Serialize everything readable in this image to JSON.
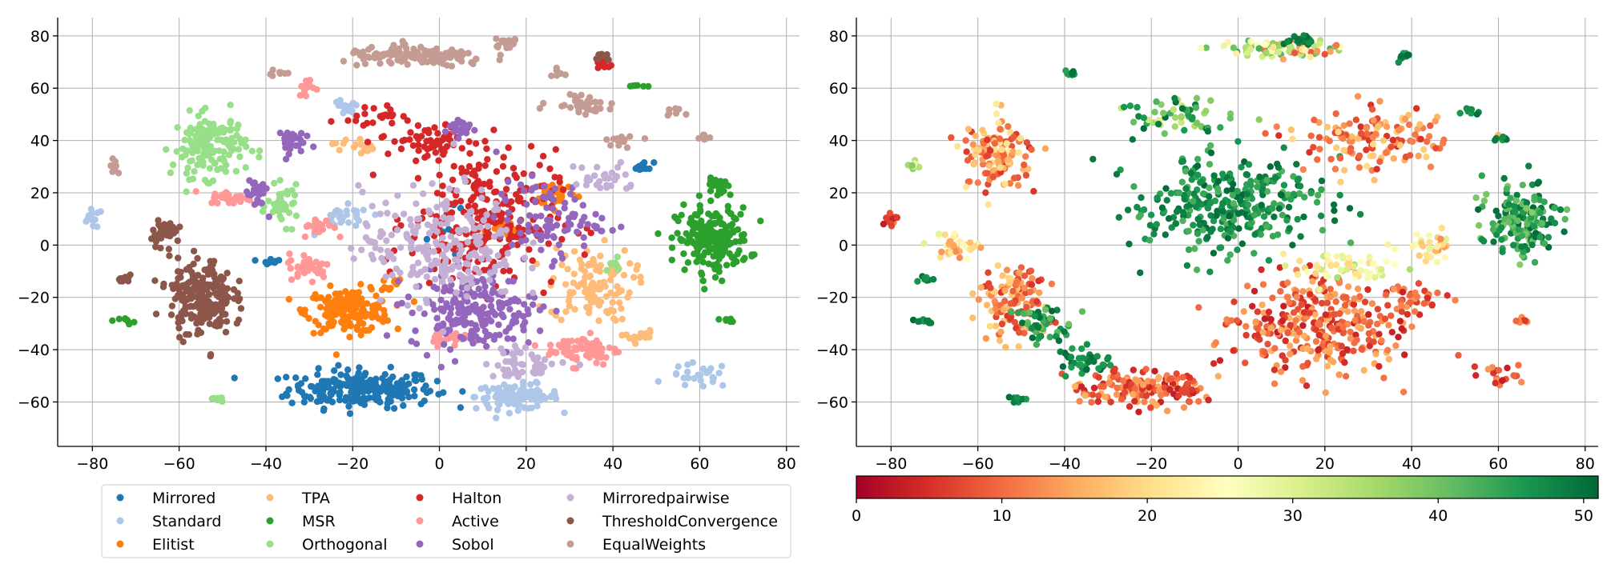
{
  "chart_data": [
    {
      "type": "scatter",
      "title": "",
      "xlabel": "",
      "ylabel": "",
      "xlim": [
        -88,
        83
      ],
      "ylim": [
        -77,
        87
      ],
      "xticks": [
        -80,
        -60,
        -40,
        -20,
        0,
        20,
        40,
        60,
        80
      ],
      "yticks": [
        -60,
        -40,
        -20,
        0,
        20,
        40,
        60,
        80
      ],
      "xtick_labels": [
        "−80",
        "−60",
        "−40",
        "−20",
        "0",
        "20",
        "40",
        "60",
        "80"
      ],
      "ytick_labels": [
        "−60",
        "−40",
        "−20",
        "0",
        "20",
        "40",
        "60",
        "80"
      ],
      "grid": true,
      "legend_position": "bottom-center",
      "legend_columns": 4,
      "series": [
        {
          "name": "Mirrored",
          "color": "#1f77b4",
          "clusters": [
            {
              "cx": -18,
              "cy": -55,
              "sx": 14,
              "sy": 6,
              "n": 230
            },
            {
              "cx": 47,
              "cy": 30,
              "sx": 2,
              "sy": 1.5,
              "n": 12
            },
            {
              "cx": -39,
              "cy": -6,
              "sx": 2,
              "sy": 1,
              "n": 8
            },
            {
              "cx": 6,
              "cy": 5,
              "sx": 10,
              "sy": 10,
              "n": 10
            }
          ]
        },
        {
          "name": "Standard",
          "color": "#aec7e8",
          "clusters": [
            {
              "cx": 18,
              "cy": -58,
              "sx": 8,
              "sy": 4,
              "n": 110
            },
            {
              "cx": -80,
              "cy": 10,
              "sx": 2,
              "sy": 3,
              "n": 15
            },
            {
              "cx": -22,
              "cy": 52,
              "sx": 3,
              "sy": 3,
              "n": 15
            },
            {
              "cx": 60,
              "cy": -50,
              "sx": 6,
              "sy": 4,
              "n": 25
            },
            {
              "cx": -22,
              "cy": 10,
              "sx": 5,
              "sy": 4,
              "n": 30
            }
          ]
        },
        {
          "name": "Elitist",
          "color": "#ff7f0e",
          "clusters": [
            {
              "cx": -21,
              "cy": -25,
              "sx": 8,
              "sy": 7,
              "n": 180
            },
            {
              "cx": 27,
              "cy": 20,
              "sx": 4,
              "sy": 4,
              "n": 35
            },
            {
              "cx": 15,
              "cy": 5,
              "sx": 4,
              "sy": 3,
              "n": 20
            },
            {
              "cx": -12,
              "cy": -15,
              "sx": 3,
              "sy": 3,
              "n": 10
            }
          ]
        },
        {
          "name": "TPA",
          "color": "#ffbb78",
          "clusters": [
            {
              "cx": 35,
              "cy": -15,
              "sx": 8,
              "sy": 12,
              "n": 110
            },
            {
              "cx": -20,
              "cy": 38,
              "sx": 4,
              "sy": 3,
              "n": 15
            },
            {
              "cx": 46,
              "cy": -35,
              "sx": 3,
              "sy": 2,
              "n": 15
            }
          ]
        },
        {
          "name": "MSR",
          "color": "#2ca02c",
          "clusters": [
            {
              "cx": 63,
              "cy": 2,
              "sx": 7,
              "sy": 10,
              "n": 210
            },
            {
              "cx": 65,
              "cy": 22,
              "sx": 3,
              "sy": 3,
              "n": 25
            },
            {
              "cx": -72,
              "cy": -29,
              "sx": 1.5,
              "sy": 1,
              "n": 8
            },
            {
              "cx": 45,
              "cy": 61,
              "sx": 2,
              "sy": 0.5,
              "n": 6
            },
            {
              "cx": 66,
              "cy": -29,
              "sx": 1.5,
              "sy": 1,
              "n": 6
            }
          ]
        },
        {
          "name": "Orthogonal",
          "color": "#98df8a",
          "clusters": [
            {
              "cx": -53,
              "cy": 38,
              "sx": 7,
              "sy": 10,
              "n": 150
            },
            {
              "cx": -36,
              "cy": 15,
              "sx": 3,
              "sy": 6,
              "n": 40
            },
            {
              "cx": -51,
              "cy": -59,
              "sx": 1.5,
              "sy": 1,
              "n": 8
            },
            {
              "cx": 40,
              "cy": -8,
              "sx": 2,
              "sy": 2,
              "n": 10
            }
          ]
        },
        {
          "name": "Halton",
          "color": "#d62728",
          "clusters": [
            {
              "cx": 10,
              "cy": 10,
              "sx": 14,
              "sy": 22,
              "n": 260
            },
            {
              "cx": -2,
              "cy": 40,
              "sx": 10,
              "sy": 6,
              "n": 60
            },
            {
              "cx": -15,
              "cy": 50,
              "sx": 5,
              "sy": 3,
              "n": 20
            },
            {
              "cx": 38,
              "cy": 69,
              "sx": 1.5,
              "sy": 2,
              "n": 10
            }
          ]
        },
        {
          "name": "Active",
          "color": "#ff9896",
          "clusters": [
            {
              "cx": 33,
              "cy": -40,
              "sx": 7,
              "sy": 5,
              "n": 70
            },
            {
              "cx": -30,
              "cy": -8,
              "sx": 4,
              "sy": 4,
              "n": 40
            },
            {
              "cx": -28,
              "cy": 7,
              "sx": 3,
              "sy": 3,
              "n": 25
            },
            {
              "cx": -48,
              "cy": 18,
              "sx": 4,
              "sy": 2,
              "n": 30
            },
            {
              "cx": -30,
              "cy": 60,
              "sx": 2,
              "sy": 3,
              "n": 15
            },
            {
              "cx": 2,
              "cy": -35,
              "sx": 4,
              "sy": 3,
              "n": 30
            }
          ]
        },
        {
          "name": "Sobol",
          "color": "#9467bd",
          "clusters": [
            {
              "cx": 8,
              "cy": -25,
              "sx": 12,
              "sy": 12,
              "n": 200
            },
            {
              "cx": 25,
              "cy": 10,
              "sx": 10,
              "sy": 12,
              "n": 90
            },
            {
              "cx": -42,
              "cy": 20,
              "sx": 2,
              "sy": 6,
              "n": 30
            },
            {
              "cx": -35,
              "cy": 40,
              "sx": 3,
              "sy": 4,
              "n": 30
            },
            {
              "cx": 5,
              "cy": 45,
              "sx": 3,
              "sy": 3,
              "n": 25
            }
          ]
        },
        {
          "name": "Mirroredpairwise",
          "color": "#c5b0d5",
          "clusters": [
            {
              "cx": 0,
              "cy": 0,
              "sx": 15,
              "sy": 18,
              "n": 220
            },
            {
              "cx": 20,
              "cy": -45,
              "sx": 8,
              "sy": 5,
              "n": 45
            },
            {
              "cx": 38,
              "cy": 25,
              "sx": 6,
              "sy": 6,
              "n": 30
            }
          ]
        },
        {
          "name": "ThresholdConvergence",
          "color": "#8c564b",
          "clusters": [
            {
              "cx": -55,
              "cy": -20,
              "sx": 6,
              "sy": 12,
              "n": 220
            },
            {
              "cx": -63,
              "cy": 5,
              "sx": 3,
              "sy": 4,
              "n": 40
            },
            {
              "cx": -72,
              "cy": -13,
              "sx": 1.5,
              "sy": 1,
              "n": 10
            },
            {
              "cx": 38,
              "cy": 72,
              "sx": 1.5,
              "sy": 1.5,
              "n": 10
            }
          ]
        },
        {
          "name": "EqualWeights",
          "color": "#c49c94",
          "clusters": [
            {
              "cx": -5,
              "cy": 72,
              "sx": 14,
              "sy": 3,
              "n": 140
            },
            {
              "cx": 15,
              "cy": 77,
              "sx": 3,
              "sy": 1.5,
              "n": 20
            },
            {
              "cx": 33,
              "cy": 55,
              "sx": 6,
              "sy": 4,
              "n": 35
            },
            {
              "cx": 42,
              "cy": 40,
              "sx": 3,
              "sy": 2,
              "n": 15
            },
            {
              "cx": -75,
              "cy": 30,
              "sx": 1,
              "sy": 2,
              "n": 8
            },
            {
              "cx": -38,
              "cy": 66,
              "sx": 2,
              "sy": 1,
              "n": 8
            },
            {
              "cx": 27,
              "cy": 66,
              "sx": 1.5,
              "sy": 1.5,
              "n": 8
            },
            {
              "cx": 54,
              "cy": 51,
              "sx": 1.5,
              "sy": 1,
              "n": 8
            },
            {
              "cx": 61,
              "cy": 41,
              "sx": 2,
              "sy": 1,
              "n": 8
            }
          ]
        }
      ]
    },
    {
      "type": "scatter",
      "title": "",
      "xlabel": "",
      "ylabel": "",
      "xlim": [
        -88,
        83
      ],
      "ylim": [
        -77,
        87
      ],
      "xticks": [
        -80,
        -60,
        -40,
        -20,
        0,
        20,
        40,
        60,
        80
      ],
      "yticks": [
        -60,
        -40,
        -20,
        0,
        20,
        40,
        60,
        80
      ],
      "xtick_labels": [
        "−80",
        "−60",
        "−40",
        "−20",
        "0",
        "20",
        "40",
        "60",
        "80"
      ],
      "ytick_labels": [
        "−60",
        "−40",
        "−20",
        "0",
        "20",
        "40",
        "60",
        "80"
      ],
      "grid": true,
      "colormap": "RdYlGn",
      "colormap_stops": [
        "#a50026",
        "#d73027",
        "#f46d43",
        "#fdae61",
        "#fee08b",
        "#ffffbf",
        "#d9ef8b",
        "#a6d96a",
        "#66bd63",
        "#1a9850",
        "#006837"
      ],
      "colorbar": {
        "position": "bottom",
        "range": [
          0,
          51
        ],
        "ticks": [
          0,
          10,
          20,
          30,
          40,
          50
        ],
        "tick_labels": [
          "0",
          "10",
          "20",
          "30",
          "40",
          "50"
        ]
      },
      "clusters": [
        {
          "cx": -2,
          "cy": 15,
          "sx": 18,
          "sy": 15,
          "n": 320,
          "vmin": 42,
          "vmax": 51
        },
        {
          "cx": 65,
          "cy": 10,
          "sx": 7,
          "sy": 12,
          "n": 160,
          "vmin": 38,
          "vmax": 51
        },
        {
          "cx": 18,
          "cy": -30,
          "sx": 18,
          "sy": 15,
          "n": 320,
          "vmin": 3,
          "vmax": 16
        },
        {
          "cx": -22,
          "cy": -55,
          "sx": 12,
          "sy": 6,
          "n": 160,
          "vmin": 3,
          "vmax": 16
        },
        {
          "cx": -52,
          "cy": -20,
          "sx": 6,
          "sy": 12,
          "n": 130,
          "vmin": 5,
          "vmax": 20
        },
        {
          "cx": -55,
          "cy": 35,
          "sx": 7,
          "sy": 12,
          "n": 130,
          "vmin": 5,
          "vmax": 22
        },
        {
          "cx": 25,
          "cy": -8,
          "sx": 10,
          "sy": 5,
          "n": 60,
          "vmin": 18,
          "vmax": 35
        },
        {
          "cx": 30,
          "cy": 40,
          "sx": 14,
          "sy": 10,
          "n": 140,
          "vmin": 5,
          "vmax": 20
        },
        {
          "cx": 10,
          "cy": 75,
          "sx": 12,
          "sy": 3,
          "n": 80,
          "vmin": 8,
          "vmax": 45
        },
        {
          "cx": 15,
          "cy": 78,
          "sx": 3,
          "sy": 1.5,
          "n": 25,
          "vmin": 47,
          "vmax": 51
        },
        {
          "cx": -15,
          "cy": 50,
          "sx": 10,
          "sy": 6,
          "n": 60,
          "vmin": 30,
          "vmax": 51
        },
        {
          "cx": -65,
          "cy": 0,
          "sx": 4,
          "sy": 4,
          "n": 40,
          "vmin": 12,
          "vmax": 30
        },
        {
          "cx": -35,
          "cy": -45,
          "sx": 5,
          "sy": 5,
          "n": 40,
          "vmin": 45,
          "vmax": 51
        },
        {
          "cx": -45,
          "cy": -30,
          "sx": 4,
          "sy": 6,
          "n": 50,
          "vmin": 40,
          "vmax": 51
        },
        {
          "cx": -80,
          "cy": 10,
          "sx": 1.5,
          "sy": 2,
          "n": 15,
          "vmin": 3,
          "vmax": 12
        },
        {
          "cx": -72,
          "cy": -13,
          "sx": 2,
          "sy": 1,
          "n": 10,
          "vmin": 45,
          "vmax": 51
        },
        {
          "cx": -72,
          "cy": -29,
          "sx": 2,
          "sy": 1,
          "n": 10,
          "vmin": 45,
          "vmax": 51
        },
        {
          "cx": -51,
          "cy": -59,
          "sx": 2,
          "sy": 1,
          "n": 8,
          "vmin": 45,
          "vmax": 51
        },
        {
          "cx": -75,
          "cy": 30,
          "sx": 1,
          "sy": 2,
          "n": 8,
          "vmin": 25,
          "vmax": 40
        },
        {
          "cx": -38,
          "cy": 66,
          "sx": 2,
          "sy": 1,
          "n": 8,
          "vmin": 45,
          "vmax": 51
        },
        {
          "cx": 38,
          "cy": 72,
          "sx": 1.5,
          "sy": 1.5,
          "n": 10,
          "vmin": 45,
          "vmax": 51
        },
        {
          "cx": 54,
          "cy": 51,
          "sx": 1.5,
          "sy": 1,
          "n": 8,
          "vmin": 45,
          "vmax": 51
        },
        {
          "cx": 61,
          "cy": 41,
          "sx": 2,
          "sy": 1,
          "n": 8,
          "vmin": 45,
          "vmax": 51
        },
        {
          "cx": 60,
          "cy": -50,
          "sx": 4,
          "sy": 4,
          "n": 20,
          "vmin": 3,
          "vmax": 14
        },
        {
          "cx": 40,
          "cy": -20,
          "sx": 6,
          "sy": 5,
          "n": 40,
          "vmin": 3,
          "vmax": 14
        },
        {
          "cx": 45,
          "cy": 0,
          "sx": 4,
          "sy": 4,
          "n": 30,
          "vmin": 12,
          "vmax": 30
        },
        {
          "cx": 66,
          "cy": -29,
          "sx": 1.5,
          "sy": 1,
          "n": 8,
          "vmin": 5,
          "vmax": 14
        }
      ]
    }
  ]
}
